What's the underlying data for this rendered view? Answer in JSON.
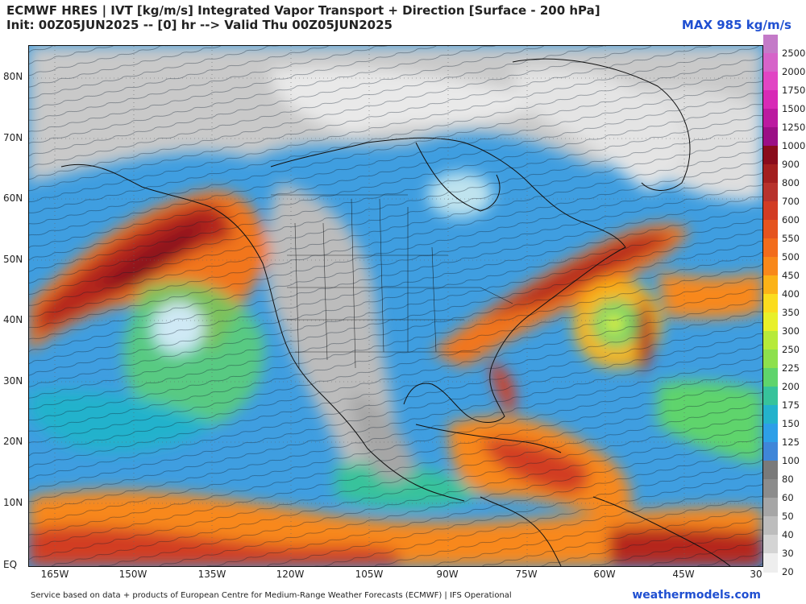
{
  "header": {
    "title_line1": "ECMWF HRES | IVT [kg/m/s] Integrated Vapor Transport + Direction [Surface - 200 hPa]",
    "title_line2": "Init: 00Z05JUN2025 -- [0] hr --> Valid Thu 00Z05JUN2025",
    "max_label": "MAX 985 kg/m/s"
  },
  "axes": {
    "lat_labels": [
      "80N",
      "70N",
      "60N",
      "50N",
      "40N",
      "30N",
      "20N",
      "10N",
      "EQ"
    ],
    "lon_labels": [
      "165W",
      "150W",
      "135W",
      "120W",
      "105W",
      "90W",
      "75W",
      "60W",
      "45W",
      "30"
    ]
  },
  "colorbar": {
    "labels": [
      "2500",
      "2000",
      "1750",
      "1500",
      "1250",
      "1000",
      "900",
      "800",
      "700",
      "600",
      "550",
      "500",
      "450",
      "400",
      "350",
      "300",
      "250",
      "225",
      "200",
      "175",
      "150",
      "125",
      "100",
      "80",
      "60",
      "50",
      "40",
      "30",
      "20"
    ],
    "colors": [
      "#c47ac8",
      "#d663c9",
      "#e145c4",
      "#d72ab6",
      "#bb1aa0",
      "#9b0f86",
      "#8a0c1c",
      "#a31f1f",
      "#b8322c",
      "#d23c24",
      "#e5541f",
      "#f26c1c",
      "#f8881a",
      "#fbb217",
      "#fbdc1e",
      "#e8f02a",
      "#b6ea3a",
      "#8de04d",
      "#5fd46c",
      "#37c39b",
      "#23b2cc",
      "#2d9fe8",
      "#3f86d9",
      "#7a7a7a",
      "#8c8c8c",
      "#a6a6a6",
      "#bdbdbd",
      "#d4d4d4",
      "#eeeeee"
    ]
  },
  "footer": {
    "credit": "Service based on data + products of European Centre for Medium-Range Weather Forecasts (ECMWF) | IFS Operational",
    "brand": "weathermodels.com"
  }
}
